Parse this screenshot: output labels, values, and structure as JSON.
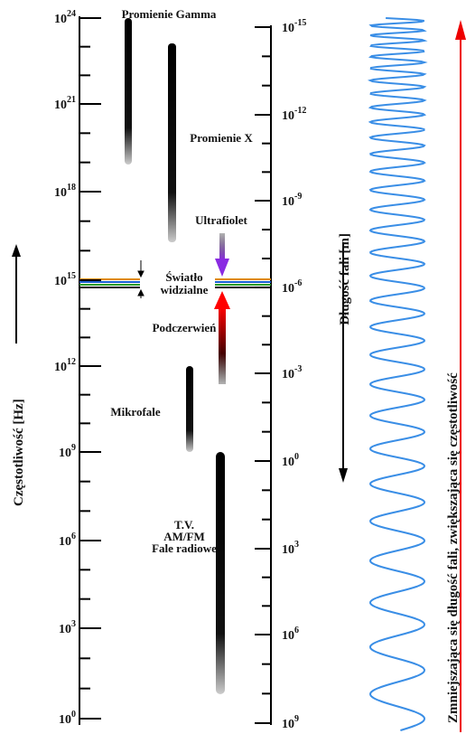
{
  "frequency_axis": {
    "label": "Częstotliwość [Hz]",
    "ticks": [
      {
        "base": "10",
        "exp": "24"
      },
      {
        "base": "10",
        "exp": "21"
      },
      {
        "base": "10",
        "exp": "18"
      },
      {
        "base": "10",
        "exp": "15"
      },
      {
        "base": "10",
        "exp": "12"
      },
      {
        "base": "10",
        "exp": "9"
      },
      {
        "base": "10",
        "exp": "6"
      },
      {
        "base": "10",
        "exp": "3"
      },
      {
        "base": "10",
        "exp": "0"
      }
    ]
  },
  "wavelength_axis": {
    "label": "Długość fali [m]",
    "ticks": [
      {
        "base": "10",
        "exp": "-15"
      },
      {
        "base": "10",
        "exp": "-12"
      },
      {
        "base": "10",
        "exp": "-9"
      },
      {
        "base": "10",
        "exp": "-6"
      },
      {
        "base": "10",
        "exp": "-3"
      },
      {
        "base": "10",
        "exp": "0"
      },
      {
        "base": "10",
        "exp": "3"
      },
      {
        "base": "10",
        "exp": "6"
      },
      {
        "base": "10",
        "exp": "9"
      }
    ]
  },
  "bands": {
    "gamma": "Promienie Gamma",
    "xray": "Promienie X",
    "uv": "Ultrafiolet",
    "visible": [
      "Światło",
      "widzialne"
    ],
    "infrared": "Podczerwień",
    "microwave": "Mikrofale",
    "radio": [
      "T.V.",
      "AM/FM",
      "Fale radiowe"
    ]
  },
  "wave_caption": "Zmniejszająca się długość fali, zwiększająca się częstotliwość"
}
